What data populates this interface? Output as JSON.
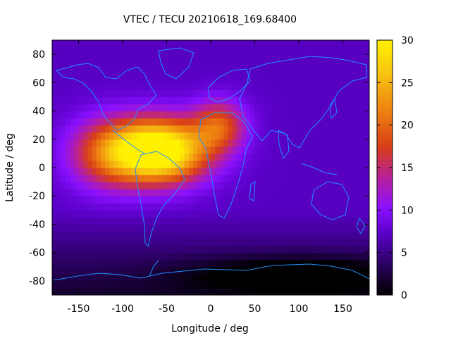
{
  "chart_data": {
    "type": "heatmap",
    "title": "VTEC / TECU 20210618_169.68400",
    "xlabel": "Longitude / deg",
    "ylabel": "Latitude / deg",
    "xlim": [
      -180,
      180
    ],
    "ylim": [
      -90,
      90
    ],
    "xticks": [
      -150,
      -100,
      -50,
      0,
      50,
      100,
      150
    ],
    "yticks": [
      -80,
      -60,
      -40,
      -20,
      0,
      20,
      40,
      60,
      80
    ],
    "colorbar": {
      "range": [
        0,
        30
      ],
      "ticks": [
        0,
        5,
        10,
        15,
        20,
        25,
        30
      ],
      "palette": [
        "#000000",
        "#2a0060",
        "#5a00c8",
        "#8a10ff",
        "#b8209a",
        "#d83e18",
        "#ee8010",
        "#f8c810",
        "#fff200"
      ]
    },
    "field": {
      "description_units": "TECU",
      "background": 7,
      "peaks": [
        {
          "lon": -60,
          "lat": 12,
          "value": 28,
          "sigma_lon": 55,
          "sigma_lat": 22
        },
        {
          "lon": 10,
          "lat": 30,
          "value": 11,
          "sigma_lon": 30,
          "sigma_lat": 18
        },
        {
          "lon": -120,
          "lat": 10,
          "value": 9,
          "sigma_lon": 45,
          "sigma_lat": 25
        },
        {
          "lon": 100,
          "lat": -75,
          "value": -6,
          "sigma_lon": 120,
          "sigma_lat": 12
        }
      ]
    },
    "coastline_color": "#1e90ff"
  }
}
